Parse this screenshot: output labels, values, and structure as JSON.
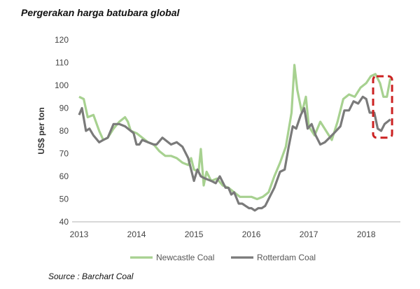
{
  "title": "Pergerakan harga batubara global",
  "source": "Source : Barchart Coal",
  "chart_data": {
    "type": "line",
    "title": "Pergerakan harga batubara global",
    "xlabel": "",
    "ylabel": "US$ per ton",
    "ylim": [
      40,
      120
    ],
    "yticks": [
      40,
      50,
      60,
      70,
      80,
      90,
      100,
      110,
      120
    ],
    "xlim": [
      2013.0,
      2018.4
    ],
    "xticks": [
      2013,
      2014,
      2015,
      2016,
      2017,
      2018
    ],
    "xtick_labels": [
      "2013",
      "2014",
      "2015",
      "2016",
      "2017",
      "2018"
    ],
    "grid": false,
    "legend": "bottom",
    "annotation": "dashed red box highlighting latest 2018 prices",
    "highlight_range": {
      "x": [
        2018.12,
        2018.45
      ],
      "y": [
        77,
        104
      ]
    },
    "series": [
      {
        "name": "Newcastle Coal",
        "color": "#a7d190",
        "points": [
          [
            2013.0,
            95
          ],
          [
            2013.08,
            94
          ],
          [
            2013.15,
            86
          ],
          [
            2013.25,
            87
          ],
          [
            2013.35,
            80
          ],
          [
            2013.42,
            76
          ],
          [
            2013.5,
            77
          ],
          [
            2013.6,
            81
          ],
          [
            2013.7,
            84
          ],
          [
            2013.8,
            86
          ],
          [
            2013.85,
            84
          ],
          [
            2013.9,
            80
          ],
          [
            2014.0,
            79
          ],
          [
            2014.1,
            77
          ],
          [
            2014.2,
            75
          ],
          [
            2014.3,
            74
          ],
          [
            2014.4,
            71
          ],
          [
            2014.5,
            69
          ],
          [
            2014.6,
            69
          ],
          [
            2014.7,
            68
          ],
          [
            2014.8,
            66
          ],
          [
            2014.9,
            65
          ],
          [
            2014.95,
            68
          ],
          [
            2015.0,
            63
          ],
          [
            2015.08,
            62
          ],
          [
            2015.12,
            72
          ],
          [
            2015.17,
            56
          ],
          [
            2015.22,
            62
          ],
          [
            2015.3,
            58
          ],
          [
            2015.4,
            59
          ],
          [
            2015.5,
            56
          ],
          [
            2015.6,
            55
          ],
          [
            2015.7,
            53
          ],
          [
            2015.8,
            51
          ],
          [
            2015.9,
            51
          ],
          [
            2016.0,
            51
          ],
          [
            2016.1,
            50
          ],
          [
            2016.2,
            51
          ],
          [
            2016.3,
            53
          ],
          [
            2016.4,
            60
          ],
          [
            2016.5,
            66
          ],
          [
            2016.6,
            73
          ],
          [
            2016.7,
            88
          ],
          [
            2016.75,
            109
          ],
          [
            2016.8,
            98
          ],
          [
            2016.88,
            88
          ],
          [
            2016.95,
            95
          ],
          [
            2017.0,
            82
          ],
          [
            2017.1,
            78
          ],
          [
            2017.2,
            84
          ],
          [
            2017.3,
            80
          ],
          [
            2017.4,
            76
          ],
          [
            2017.5,
            84
          ],
          [
            2017.6,
            94
          ],
          [
            2017.7,
            96
          ],
          [
            2017.8,
            95
          ],
          [
            2017.9,
            99
          ],
          [
            2018.0,
            101
          ],
          [
            2018.08,
            104
          ],
          [
            2018.16,
            105
          ],
          [
            2018.24,
            101
          ],
          [
            2018.3,
            95
          ],
          [
            2018.36,
            95
          ],
          [
            2018.42,
            103
          ]
        ]
      },
      {
        "name": "Rotterdam Coal",
        "color": "#7a7a7a",
        "points": [
          [
            2013.0,
            87
          ],
          [
            2013.05,
            90
          ],
          [
            2013.12,
            80
          ],
          [
            2013.18,
            81
          ],
          [
            2013.25,
            78
          ],
          [
            2013.35,
            75
          ],
          [
            2013.42,
            76
          ],
          [
            2013.5,
            77
          ],
          [
            2013.6,
            83
          ],
          [
            2013.7,
            83
          ],
          [
            2013.8,
            82
          ],
          [
            2013.9,
            80
          ],
          [
            2013.95,
            79
          ],
          [
            2014.0,
            74
          ],
          [
            2014.05,
            74
          ],
          [
            2014.1,
            76
          ],
          [
            2014.2,
            75
          ],
          [
            2014.3,
            74
          ],
          [
            2014.35,
            74
          ],
          [
            2014.45,
            77
          ],
          [
            2014.55,
            75
          ],
          [
            2014.6,
            74
          ],
          [
            2014.7,
            75
          ],
          [
            2014.8,
            73
          ],
          [
            2014.9,
            68
          ],
          [
            2015.0,
            58
          ],
          [
            2015.06,
            63
          ],
          [
            2015.12,
            60
          ],
          [
            2015.2,
            59
          ],
          [
            2015.3,
            58
          ],
          [
            2015.38,
            57
          ],
          [
            2015.45,
            60
          ],
          [
            2015.55,
            55
          ],
          [
            2015.6,
            55
          ],
          [
            2015.65,
            52
          ],
          [
            2015.7,
            53
          ],
          [
            2015.78,
            48
          ],
          [
            2015.84,
            48
          ],
          [
            2015.9,
            47
          ],
          [
            2015.96,
            46
          ],
          [
            2016.0,
            46
          ],
          [
            2016.06,
            45
          ],
          [
            2016.12,
            46
          ],
          [
            2016.18,
            46
          ],
          [
            2016.24,
            47
          ],
          [
            2016.3,
            50
          ],
          [
            2016.4,
            55
          ],
          [
            2016.5,
            62
          ],
          [
            2016.58,
            63
          ],
          [
            2016.65,
            73
          ],
          [
            2016.72,
            82
          ],
          [
            2016.78,
            81
          ],
          [
            2016.86,
            87
          ],
          [
            2016.92,
            90
          ],
          [
            2016.98,
            81
          ],
          [
            2017.05,
            83
          ],
          [
            2017.12,
            78
          ],
          [
            2017.2,
            74
          ],
          [
            2017.28,
            75
          ],
          [
            2017.36,
            77
          ],
          [
            2017.44,
            79
          ],
          [
            2017.55,
            82
          ],
          [
            2017.62,
            89
          ],
          [
            2017.7,
            89
          ],
          [
            2017.78,
            93
          ],
          [
            2017.86,
            92
          ],
          [
            2017.94,
            95
          ],
          [
            2018.0,
            94
          ],
          [
            2018.06,
            88
          ],
          [
            2018.14,
            88
          ],
          [
            2018.2,
            81
          ],
          [
            2018.26,
            80
          ],
          [
            2018.32,
            83
          ],
          [
            2018.42,
            85
          ]
        ]
      }
    ]
  }
}
